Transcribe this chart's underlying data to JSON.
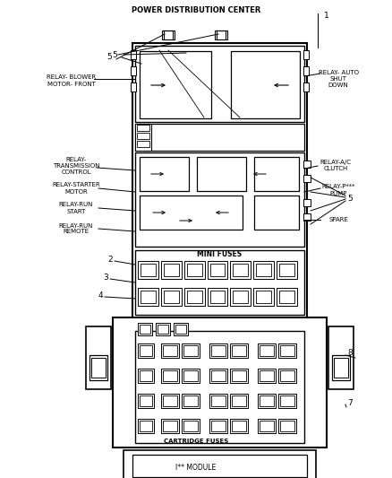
{
  "bg_color": "#ffffff",
  "line_color": "#000000",
  "fig_width": 4.38,
  "fig_height": 5.33,
  "title": "POWER DISTRIBUTION CENTER",
  "label_1": "1",
  "label_2": "2",
  "label_3": "3",
  "label_4": "4",
  "label_5_top": "5",
  "label_5_right": "5",
  "label_7": "7",
  "label_8": "8",
  "relay_blower": "RELAY- BLOWER\nMOTOR- FRONT",
  "relay_auto": "RELAY- AUTO\nSHUT\nDOWN",
  "relay_trans": "RELAY-\nTRANSMISSION\nCONTROL",
  "relay_starter": "RELAY-STARTER\nMOTOR",
  "relay_run_start": "RELAY-RUN\nSTART",
  "relay_run_remote": "RELAY-RUN\nREMOTE",
  "relay_ac": "RELAY-A/C\nCLUTCH",
  "relay_pump": "RELAY-P***\nPUMP",
  "spare": "SPARE",
  "mini_fuses": "MINI FUSES",
  "cartridge_fuses": "CARTRIDGE FUSES",
  "ipm_module": "I** MODULE"
}
